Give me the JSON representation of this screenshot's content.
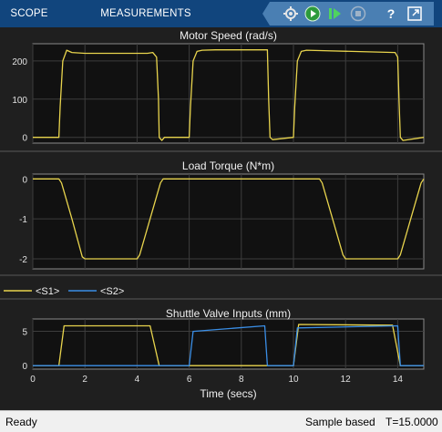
{
  "toolbar": {
    "tabs": [
      "SCOPE",
      "MEASUREMENTS"
    ],
    "buttons": [
      "configure-icon",
      "run-icon",
      "step-forward-icon",
      "stop-icon",
      "help-icon",
      "undock-icon"
    ]
  },
  "colors": {
    "toolbar_bg": "#11457d",
    "yellow": "#e8d44d",
    "blue": "#3a8ee6",
    "axes_bg": "#111111"
  },
  "status": {
    "ready": "Ready",
    "mode": "Sample based",
    "time": "T=15.0000"
  },
  "chart_data": [
    {
      "type": "line",
      "title": "Motor Speed (rad/s)",
      "xlim": [
        0,
        15
      ],
      "ylim": [
        -15,
        245
      ],
      "yticks": [
        0,
        100,
        200
      ],
      "grid": true,
      "series": [
        {
          "color": "#e8d44d",
          "x": [
            0,
            1,
            1.05,
            1.15,
            1.3,
            1.5,
            2.0,
            4.4,
            4.6,
            4.75,
            4.82,
            4.85,
            4.95,
            5.0,
            5.05,
            6.0,
            6.05,
            6.15,
            6.3,
            6.5,
            7.0,
            8.9,
            9.0,
            9.05,
            9.1,
            9.2,
            10.0,
            10.05,
            10.15,
            10.3,
            10.5,
            11.0,
            13.9,
            14.0,
            14.05,
            14.1,
            14.2,
            15.0
          ],
          "y": [
            0,
            0,
            80,
            200,
            228,
            222,
            220,
            220,
            222,
            210,
            100,
            0,
            -8,
            -4,
            0,
            0,
            80,
            200,
            225,
            228,
            229,
            229,
            229,
            100,
            0,
            -6,
            0,
            80,
            200,
            225,
            228,
            227,
            222,
            210,
            100,
            0,
            -8,
            0
          ]
        }
      ]
    },
    {
      "type": "line",
      "title": "Load Torque (N*m)",
      "xlim": [
        0,
        15
      ],
      "ylim": [
        -2.25,
        0.12
      ],
      "yticks": [
        -2,
        -1,
        0
      ],
      "grid": true,
      "series": [
        {
          "color": "#e8d44d",
          "x": [
            0,
            1.0,
            1.1,
            1.5,
            1.9,
            2.0,
            4.0,
            4.1,
            4.5,
            4.9,
            5.0,
            11.0,
            11.1,
            11.5,
            11.9,
            12.0,
            14.0,
            14.1,
            14.5,
            14.9,
            15.0
          ],
          "y": [
            0,
            0,
            -0.1,
            -1.0,
            -1.95,
            -2,
            -2,
            -1.9,
            -1.0,
            -0.1,
            0,
            0,
            -0.1,
            -1.0,
            -1.9,
            -2,
            -2,
            -1.9,
            -1.0,
            -0.1,
            0
          ]
        }
      ]
    },
    {
      "type": "line",
      "title": "Shuttle Valve Inputs (mm)",
      "xlabel": "Time (secs)",
      "xlim": [
        0,
        15
      ],
      "ylim": [
        -0.5,
        6.8
      ],
      "xticks": [
        0,
        2,
        4,
        6,
        8,
        10,
        12,
        14
      ],
      "yticks": [
        0,
        5
      ],
      "grid": true,
      "legend": "top-left, above plot",
      "series": [
        {
          "name": "<S1>",
          "color": "#e8d44d",
          "x": [
            0,
            1.0,
            1.2,
            4.5,
            4.85,
            5.0,
            10.0,
            10.2,
            13.8,
            14.1,
            15.0
          ],
          "y": [
            0,
            0,
            5.8,
            5.8,
            0,
            0,
            0,
            6.0,
            5.9,
            0,
            0
          ]
        },
        {
          "name": "<S2>",
          "color": "#3a8ee6",
          "x": [
            0,
            6.0,
            6.15,
            8.9,
            9.0,
            10.0,
            10.15,
            14.0,
            14.1,
            15.0
          ],
          "y": [
            0,
            0,
            5.0,
            5.8,
            0,
            0,
            5.5,
            5.8,
            0,
            0
          ]
        }
      ]
    }
  ]
}
